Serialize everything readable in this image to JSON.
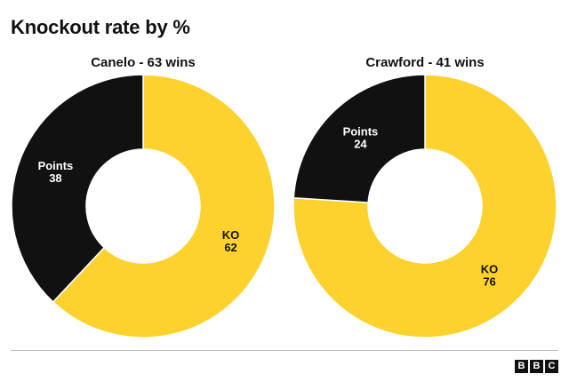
{
  "title": "Knockout rate by %",
  "colors": {
    "ko": "#fdd22f",
    "points": "#111111"
  },
  "logo": [
    "B",
    "B",
    "C"
  ],
  "chart_data": [
    {
      "type": "pie",
      "title": "Canelo - 63 wins",
      "slices": [
        {
          "label": "KO",
          "value": 62,
          "color": "#fdd22f"
        },
        {
          "label": "Points",
          "value": 38,
          "color": "#111111"
        }
      ]
    },
    {
      "type": "pie",
      "title": "Crawford - 41 wins",
      "slices": [
        {
          "label": "KO",
          "value": 76,
          "color": "#fdd22f"
        },
        {
          "label": "Points",
          "value": 24,
          "color": "#111111"
        }
      ]
    }
  ]
}
